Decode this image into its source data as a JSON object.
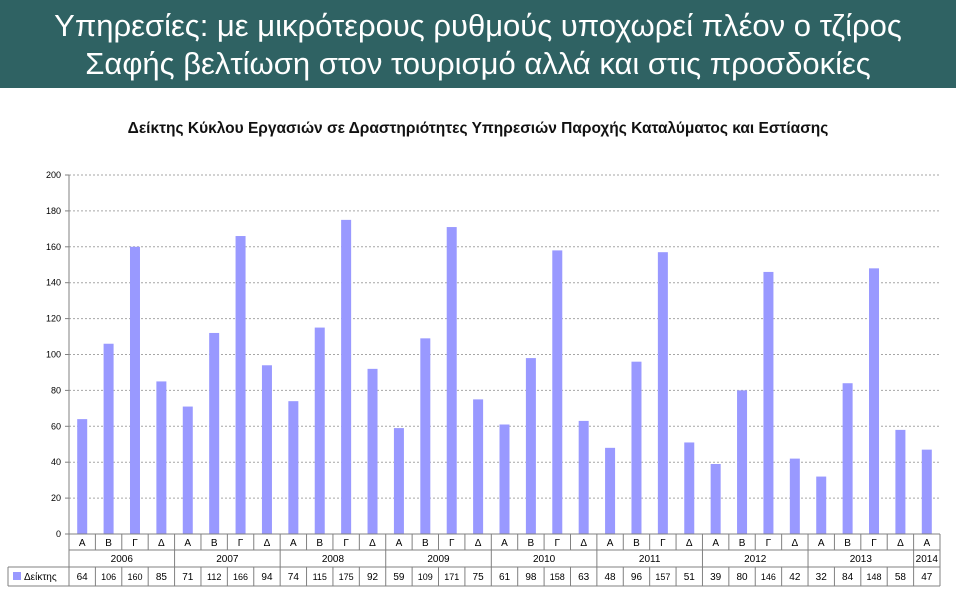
{
  "header": {
    "line1": "Υπηρεσίες: με μικρότερους ρυθμούς υποχωρεί πλέον ο τζίρος",
    "line2": "Σαφής βελτίωση στον τουρισμό αλλά και στις προσδοκίες"
  },
  "chart_data": {
    "type": "bar",
    "title": "Δείκτης Κύκλου Εργασιών σε Δραστηριότητες Υπηρεσιών Παροχής Καταλύματος και Εστίασης",
    "quarters": [
      "Α",
      "Β",
      "Γ",
      "Δ",
      "Α",
      "Β",
      "Γ",
      "Δ",
      "Α",
      "Β",
      "Γ",
      "Δ",
      "Α",
      "Β",
      "Γ",
      "Δ",
      "Α",
      "Β",
      "Γ",
      "Δ",
      "Α",
      "Β",
      "Γ",
      "Δ",
      "Α",
      "Β",
      "Γ",
      "Δ",
      "Α",
      "Β",
      "Γ",
      "Δ",
      "Α"
    ],
    "years": [
      "2006",
      "2007",
      "2008",
      "2009",
      "2010",
      "2011",
      "2012",
      "2013",
      "2014"
    ],
    "series": [
      {
        "name": "Δείκτης",
        "color": "#9999ff",
        "values": [
          64,
          106,
          160,
          85,
          71,
          112,
          166,
          94,
          74,
          115,
          175,
          92,
          59,
          109,
          171,
          75,
          61,
          98,
          158,
          63,
          48,
          96,
          157,
          51,
          39,
          80,
          146,
          42,
          32,
          84,
          148,
          58,
          47
        ]
      }
    ],
    "ylim": [
      0,
      200
    ],
    "yticks": [
      0,
      20,
      40,
      60,
      80,
      100,
      120,
      140,
      160,
      180,
      200
    ],
    "grid": "horizontal dashed",
    "legend": "data table row"
  }
}
